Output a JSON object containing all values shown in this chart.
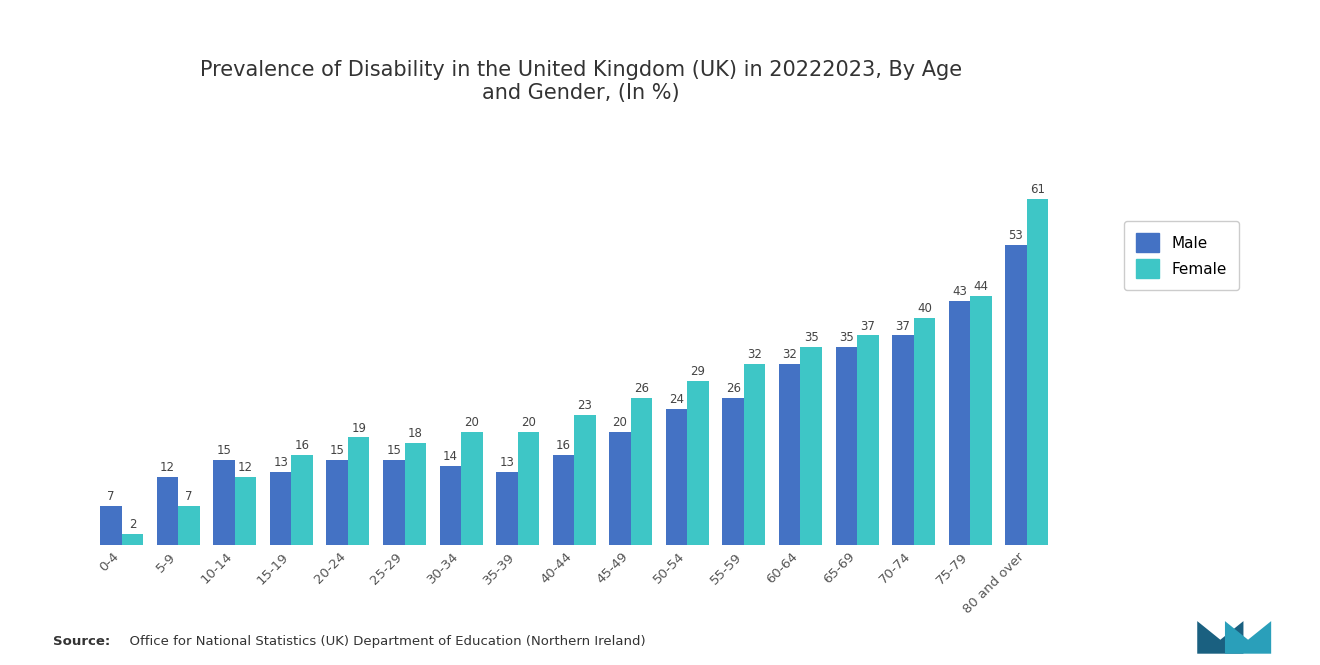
{
  "title": "Prevalence of Disability in the United Kingdom (UK) in 20222023, By Age\nand Gender, (In %)",
  "categories": [
    "0-4",
    "5-9",
    "10-14",
    "15-19",
    "20-24",
    "25-29",
    "30-34",
    "35-39",
    "40-44",
    "45-49",
    "50-54",
    "55-59",
    "60-64",
    "65-69",
    "70-74",
    "75-79",
    "80 and over"
  ],
  "male_values": [
    7,
    12,
    15,
    13,
    15,
    15,
    14,
    13,
    16,
    20,
    24,
    26,
    32,
    35,
    37,
    43,
    53
  ],
  "female_values": [
    2,
    7,
    12,
    16,
    19,
    18,
    20,
    20,
    23,
    26,
    29,
    32,
    35,
    37,
    40,
    44,
    61
  ],
  "male_color": "#4472c4",
  "female_color": "#3ec6c6",
  "background_color": "#ffffff",
  "title_fontsize": 15,
  "bar_width": 0.38,
  "source_bold": "Source:",
  "source_rest": "  Office for National Statistics (UK) Department of Education (Northern Ireland)",
  "legend_labels": [
    "Male",
    "Female"
  ],
  "ylim": [
    0,
    75
  ]
}
